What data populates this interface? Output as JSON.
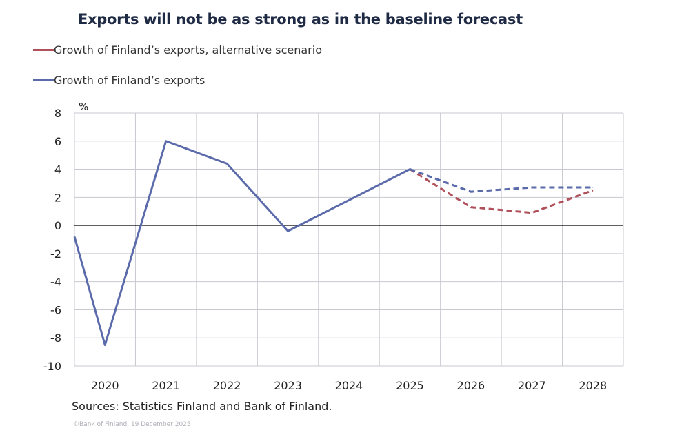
{
  "chart_data": {
    "type": "line",
    "title": "Exports will not be as strong as in the baseline forecast",
    "ylabel": "%",
    "xlabel": "",
    "categories": [
      "2020",
      "2021",
      "2022",
      "2023",
      "2024",
      "2025",
      "2026",
      "2027",
      "2028"
    ],
    "ylim": [
      -10,
      8
    ],
    "yticks": [
      8,
      6,
      4,
      2,
      0,
      -2,
      -4,
      -6,
      -8,
      -10
    ],
    "grid": true,
    "legend_position": "top-left",
    "series": [
      {
        "name": "Growth of Finland’s exports, alternative scenario",
        "color": "#b0505a",
        "style": "dashed",
        "values": [
          null,
          null,
          null,
          null,
          null,
          4.0,
          1.3,
          0.9,
          2.5
        ]
      },
      {
        "name": "Growth of Finland’s exports",
        "color": "#5a6aaa",
        "values": [
          -8.5,
          6.0,
          4.4,
          -0.4,
          1.8,
          4.0,
          2.4,
          2.7,
          2.7
        ],
        "value_at_left_axis": -0.8,
        "dashed_from": "2025"
      }
    ],
    "source": "Sources: Statistics Finland and Bank of Finland.",
    "copyright": "©Bank of Finland, 19 December 2025"
  }
}
